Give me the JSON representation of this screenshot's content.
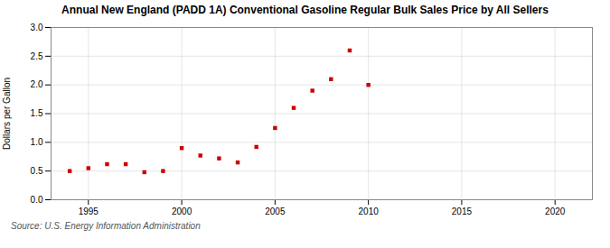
{
  "chart_data": {
    "type": "scatter",
    "title": "Annual New England (PADD 1A) Conventional Gasoline Regular Bulk Sales Price by All Sellers",
    "ylabel": "Dollars per Gallon",
    "source": "Source: U.S. Energy Information Administration",
    "x": [
      1994,
      1995,
      1996,
      1997,
      1998,
      1999,
      2000,
      2001,
      2002,
      2003,
      2004,
      2005,
      2006,
      2007,
      2008,
      2009,
      2010
    ],
    "values": [
      0.5,
      0.55,
      0.62,
      0.62,
      0.48,
      0.5,
      0.9,
      0.77,
      0.72,
      0.65,
      0.92,
      1.25,
      1.6,
      1.9,
      2.1,
      2.6,
      2.0
    ],
    "color": "#cc0000",
    "marker": "square",
    "xlim": [
      1993,
      2022
    ],
    "xticks": [
      1995,
      2000,
      2005,
      2010,
      2015,
      2020
    ],
    "ylim": [
      0.0,
      3.0
    ],
    "yticks": [
      {
        "value": 0.0,
        "label": "0.0"
      },
      {
        "value": 0.5,
        "label": "0.5"
      },
      {
        "value": 1.0,
        "label": "1.0"
      },
      {
        "value": 1.5,
        "label": "1.5"
      },
      {
        "value": 2.0,
        "label": "2.0"
      },
      {
        "value": 2.5,
        "label": "2.5"
      },
      {
        "value": 3.0,
        "label": "3.0"
      }
    ],
    "grid": true
  }
}
